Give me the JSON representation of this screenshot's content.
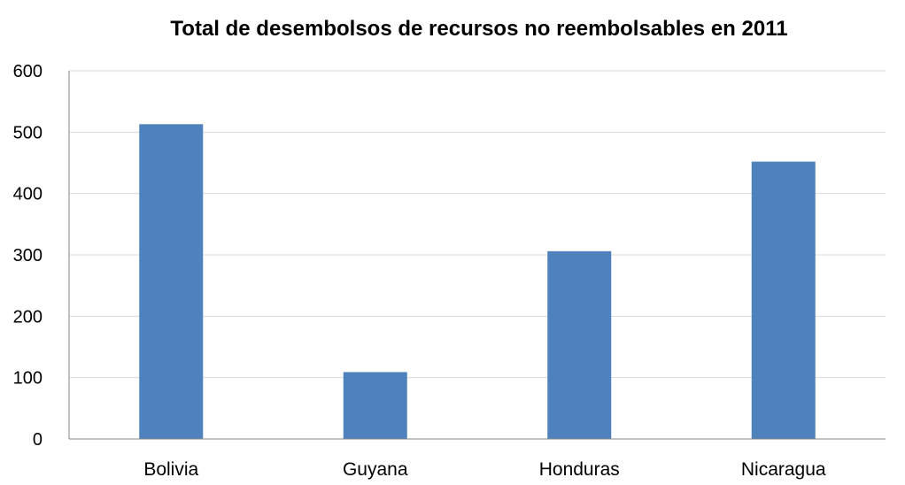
{
  "chart_data": {
    "type": "bar",
    "title": "Total de desembolsos de recursos no reembolsables en 2011",
    "xlabel": "",
    "ylabel": "",
    "categories": [
      "Bolivia",
      "Guyana",
      "Honduras",
      "Nicaragua"
    ],
    "values": [
      513,
      109,
      306,
      452
    ],
    "ylim": [
      0,
      600
    ],
    "yticks": [
      "0",
      "100",
      "200",
      "300",
      "400",
      "500",
      "600"
    ],
    "grid": true,
    "legend": "none",
    "bar_color": "#4f81bd"
  }
}
